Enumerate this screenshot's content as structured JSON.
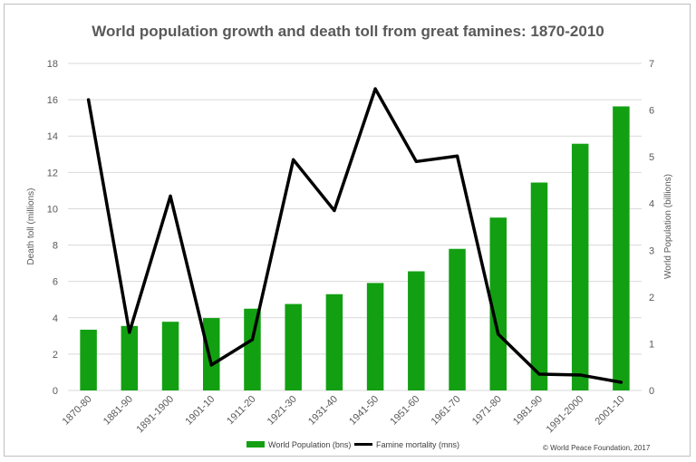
{
  "chart_data": {
    "type": "bar",
    "title": "World population growth and death toll from great famines: 1870-2010",
    "categories": [
      "1870-80",
      "1881-90",
      "1891-1900",
      "1901-10",
      "1911-20",
      "1921-30",
      "1931-40",
      "1941-50",
      "1951-60",
      "1961-70",
      "1971-80",
      "1981-90",
      "1991-2000",
      "2001-10"
    ],
    "series": [
      {
        "name": "World Population (bns)",
        "kind": "bar",
        "axis": "right",
        "color": "#12A012",
        "values": [
          1.3,
          1.38,
          1.47,
          1.55,
          1.75,
          1.85,
          2.06,
          2.3,
          2.55,
          3.03,
          3.7,
          4.45,
          5.28,
          6.08
        ]
      },
      {
        "name": "Famine mortality (mns)",
        "kind": "line",
        "axis": "left",
        "color": "#000000",
        "values": [
          16.0,
          3.2,
          10.7,
          1.4,
          2.8,
          12.7,
          9.9,
          16.6,
          12.6,
          12.9,
          3.1,
          0.9,
          0.85,
          0.45
        ]
      }
    ],
    "ylabel_left": "Death toll (millions)",
    "ylabel_right": "World Population (billions)",
    "ylim_left": [
      0,
      18
    ],
    "ylim_right": [
      0,
      7
    ],
    "yticks_left": [
      "0",
      "2",
      "4",
      "6",
      "8",
      "10",
      "12",
      "14",
      "16",
      "18"
    ],
    "yticks_right": [
      "0",
      "1",
      "2",
      "3",
      "4",
      "5",
      "6",
      "7"
    ],
    "grid": true,
    "legend_position": "bottom",
    "credit": "© World Peace Foundation, 2017"
  }
}
